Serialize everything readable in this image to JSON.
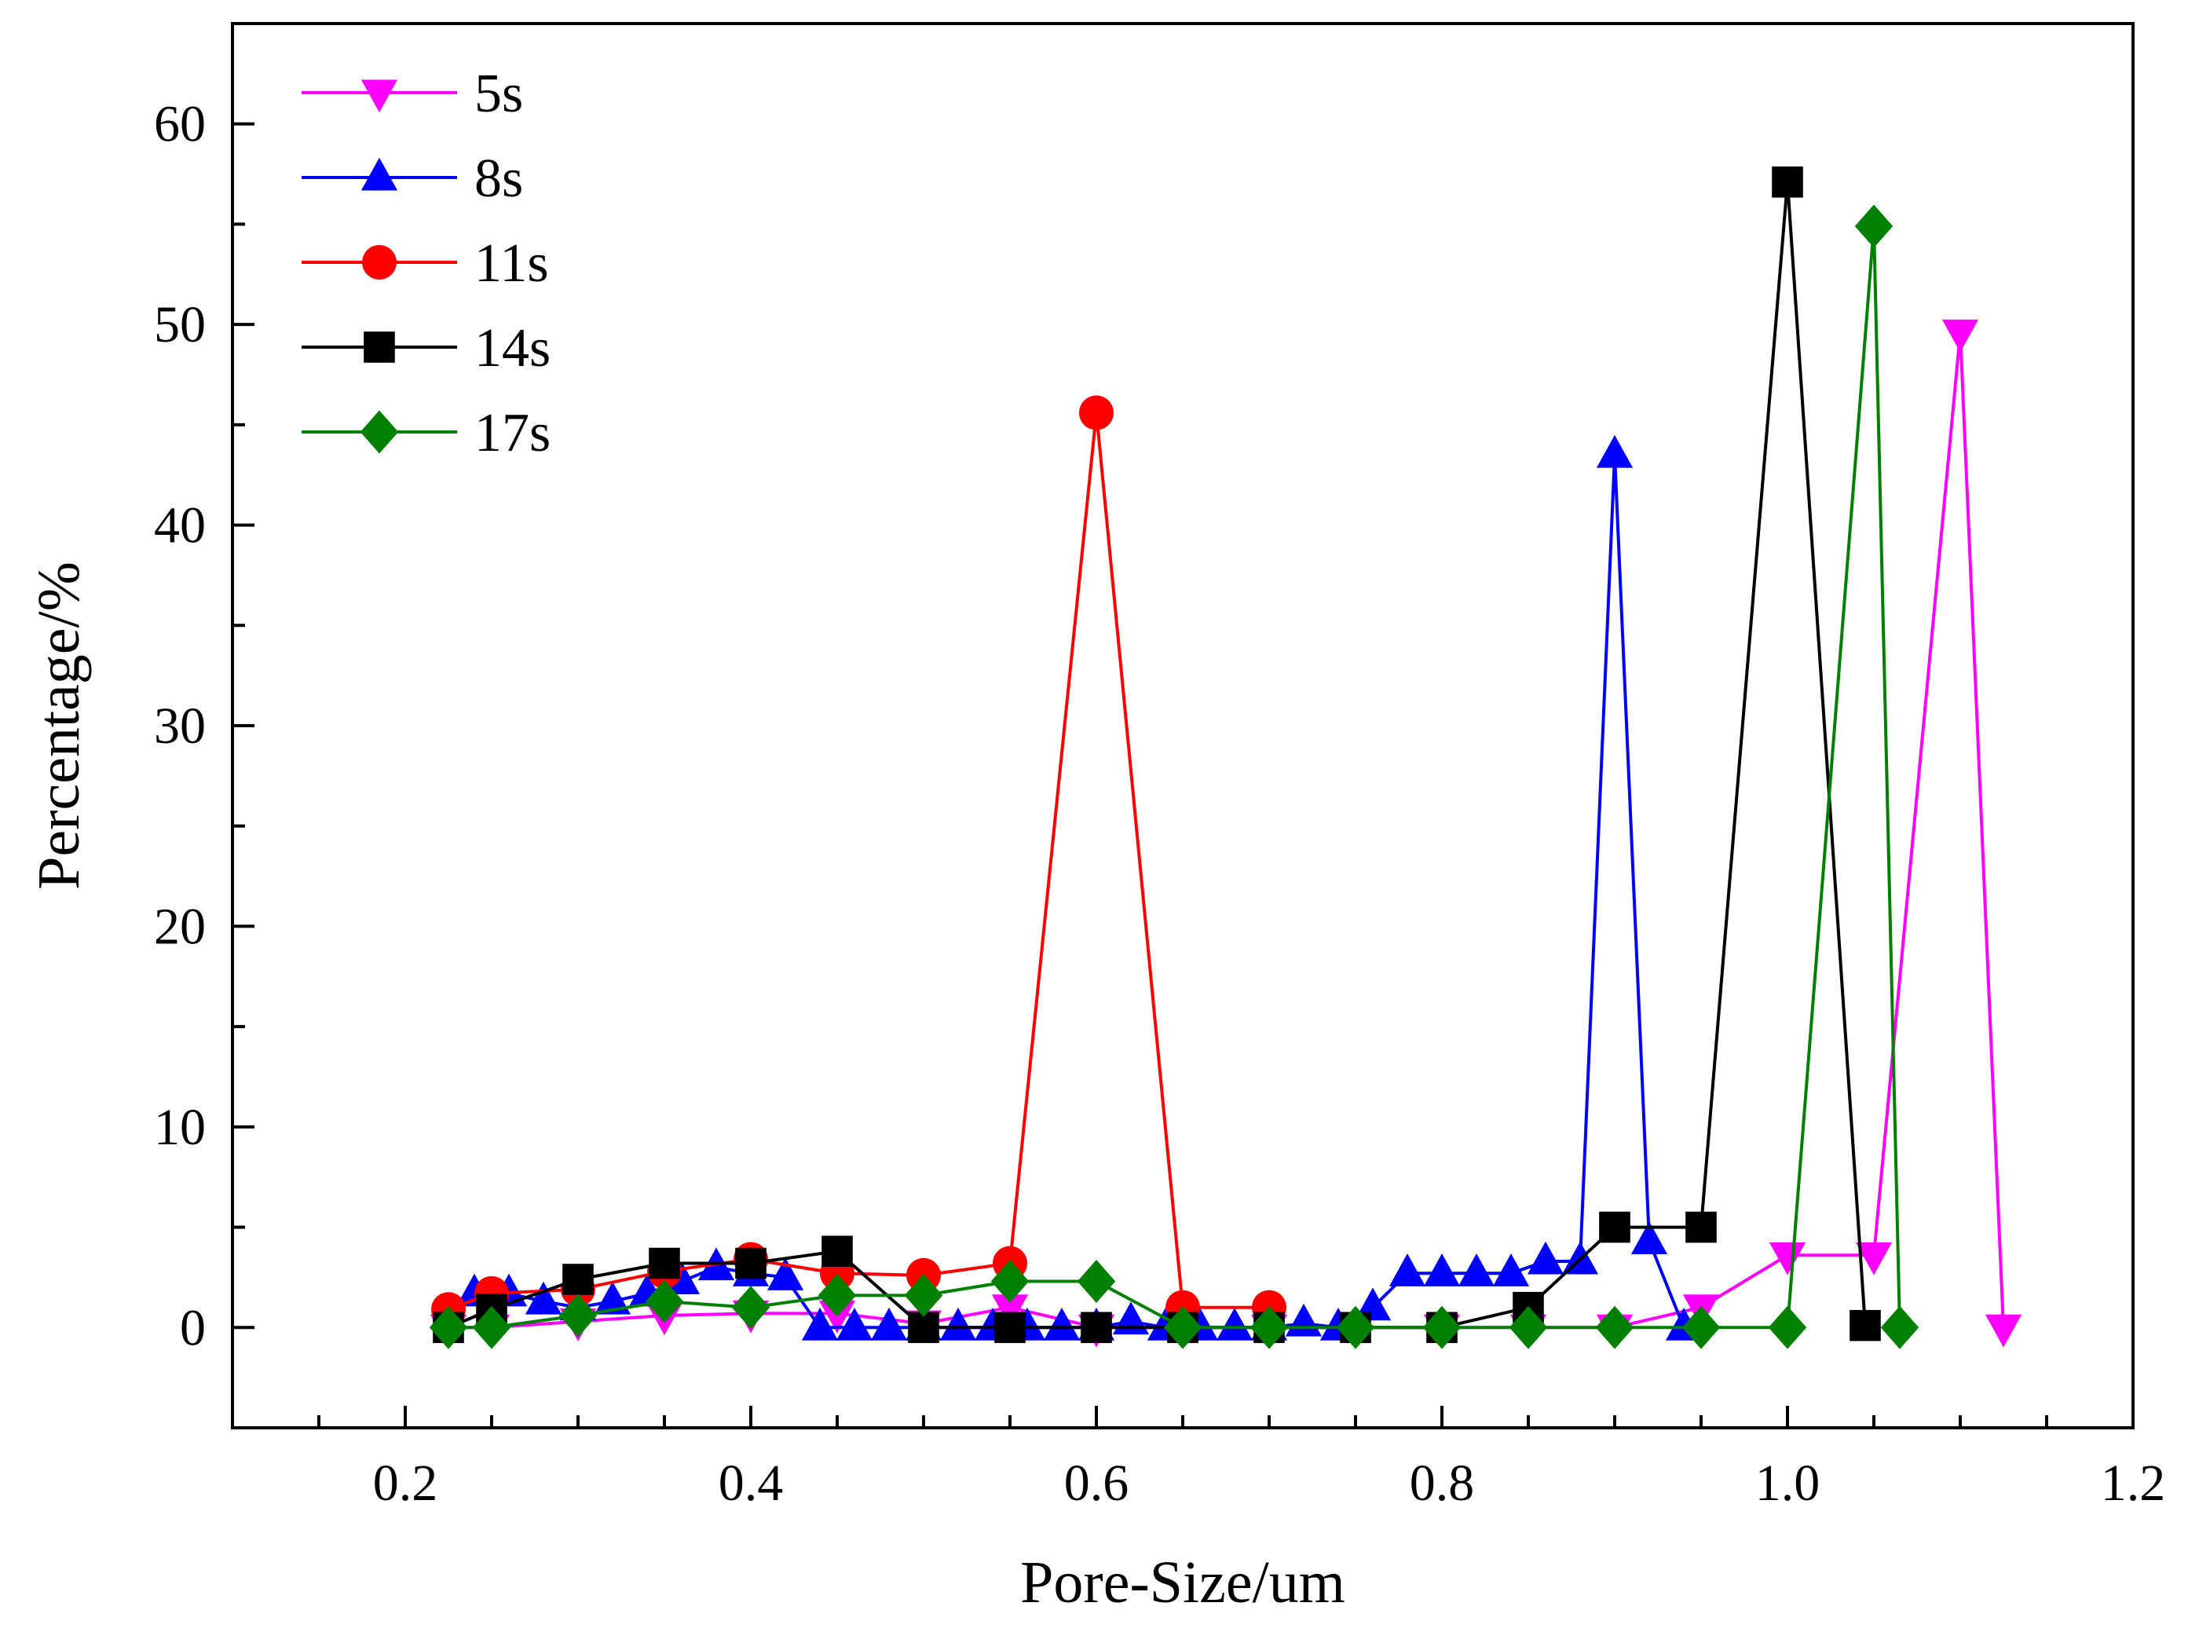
{
  "chart_data": {
    "type": "line",
    "title": "",
    "xlabel": "Pore-Size/um",
    "ylabel": "Percentage/%",
    "xlim": [
      0.1,
      1.2
    ],
    "ylim": [
      -5,
      65
    ],
    "xticks": [
      0.2,
      0.4,
      0.6,
      0.8,
      1.0,
      1.2
    ],
    "xtick_labels": [
      "0.2",
      "0.4",
      "0.6",
      "0.8",
      "1.0",
      "1.2"
    ],
    "yticks": [
      0,
      10,
      20,
      30,
      40,
      50,
      60
    ],
    "ytick_labels": [
      "0",
      "10",
      "20",
      "30",
      "40",
      "50",
      "60"
    ],
    "grid": false,
    "legend_position": "top-left",
    "series": [
      {
        "name": "5s",
        "color": "#ff00ff",
        "marker": "triangle-down",
        "x": [
          0.225,
          0.25,
          0.3,
          0.35,
          0.4,
          0.45,
          0.5,
          0.55,
          0.6,
          0.65,
          0.7,
          0.75,
          0.8,
          0.85,
          0.9,
          0.95,
          1.0,
          1.05,
          1.1,
          1.125
        ],
        "y": [
          0,
          0,
          0.3,
          0.6,
          0.7,
          0.7,
          0.2,
          1.0,
          0,
          0,
          0,
          0,
          0,
          0,
          0,
          1.0,
          3.6,
          3.6,
          49.6,
          0
        ]
      },
      {
        "name": "8s",
        "color": "#0000ff",
        "marker": "triangle-up",
        "x": [
          0.24,
          0.26,
          0.28,
          0.3,
          0.32,
          0.34,
          0.36,
          0.38,
          0.4,
          0.42,
          0.44,
          0.46,
          0.48,
          0.5,
          0.52,
          0.54,
          0.56,
          0.58,
          0.6,
          0.62,
          0.64,
          0.66,
          0.68,
          0.7,
          0.72,
          0.74,
          0.76,
          0.78,
          0.8,
          0.82,
          0.84,
          0.86,
          0.88,
          0.9,
          0.92,
          0.94
        ],
        "y": [
          1.7,
          1.7,
          1.3,
          1.0,
          1.3,
          1.7,
          2.3,
          3.0,
          2.7,
          2.5,
          0,
          0,
          0,
          0,
          0,
          0,
          0,
          0,
          0,
          0.3,
          0,
          0,
          0,
          0,
          0.2,
          0,
          1.0,
          2.7,
          2.7,
          2.7,
          2.7,
          3.3,
          3.3,
          43.5,
          4.3,
          0
        ]
      },
      {
        "name": "11s",
        "color": "#ff0000",
        "marker": "circle",
        "x": [
          0.225,
          0.25,
          0.3,
          0.35,
          0.4,
          0.45,
          0.5,
          0.55,
          0.6,
          0.65,
          0.7
        ],
        "y": [
          0.9,
          1.7,
          1.9,
          2.8,
          3.4,
          2.7,
          2.6,
          3.2,
          45.6,
          1.0,
          1.0
        ]
      },
      {
        "name": "14s",
        "color": "#000000",
        "marker": "square",
        "x": [
          0.225,
          0.25,
          0.3,
          0.35,
          0.4,
          0.45,
          0.5,
          0.55,
          0.6,
          0.65,
          0.7,
          0.75,
          0.8,
          0.85,
          0.9,
          0.95,
          1.0,
          1.045
        ],
        "y": [
          0,
          0.9,
          2.4,
          3.2,
          3.2,
          3.8,
          0,
          0,
          0,
          0,
          0,
          0,
          0,
          1.0,
          5.0,
          5.0,
          57.1,
          0.1
        ]
      },
      {
        "name": "17s",
        "color": "#008000",
        "marker": "diamond",
        "x": [
          0.225,
          0.25,
          0.3,
          0.35,
          0.4,
          0.45,
          0.5,
          0.55,
          0.6,
          0.65,
          0.7,
          0.75,
          0.8,
          0.85,
          0.9,
          0.95,
          1.0,
          1.05,
          1.065
        ],
        "y": [
          0,
          0,
          0.6,
          1.3,
          1.0,
          1.6,
          1.6,
          2.3,
          2.3,
          0,
          0,
          0,
          0,
          0,
          0,
          0,
          0,
          54.9,
          0
        ]
      }
    ]
  }
}
